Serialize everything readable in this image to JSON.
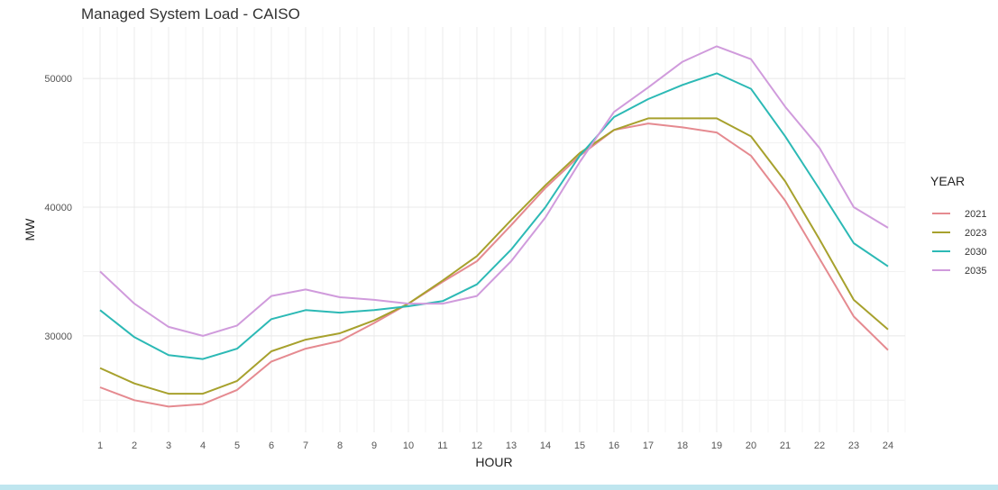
{
  "chart_data": {
    "type": "line",
    "title": "Managed System Load - CAISO",
    "xlabel": "HOUR",
    "ylabel": "MW",
    "x": [
      1,
      2,
      3,
      4,
      5,
      6,
      7,
      8,
      9,
      10,
      11,
      12,
      13,
      14,
      15,
      16,
      17,
      18,
      19,
      20,
      21,
      22,
      23,
      24
    ],
    "y_ticks": [
      30000,
      40000,
      50000
    ],
    "ylim": [
      22500,
      54000
    ],
    "grid": true,
    "legend": {
      "title": "YEAR",
      "placement": "right"
    },
    "series": [
      {
        "name": "2021",
        "color": "#e58a90",
        "values": [
          26000,
          25000,
          24500,
          24700,
          25800,
          28000,
          29000,
          29600,
          31000,
          32500,
          34200,
          35800,
          38600,
          41500,
          44000,
          46000,
          46500,
          46200,
          45800,
          44000,
          40500,
          36000,
          31500,
          28900
        ]
      },
      {
        "name": "2023",
        "color": "#a7a12d",
        "values": [
          27500,
          26300,
          25500,
          25500,
          26500,
          28800,
          29700,
          30200,
          31200,
          32500,
          34300,
          36200,
          39000,
          41700,
          44200,
          46000,
          46900,
          46900,
          46900,
          45500,
          42000,
          37500,
          32800,
          30500
        ]
      },
      {
        "name": "2030",
        "color": "#2cb9b5",
        "values": [
          32000,
          29900,
          28500,
          28200,
          29000,
          31300,
          32000,
          31800,
          32000,
          32300,
          32700,
          34000,
          36700,
          40000,
          44000,
          47000,
          48400,
          49500,
          50400,
          49200,
          45500,
          41400,
          37200,
          35400
        ]
      },
      {
        "name": "2035",
        "color": "#d09bdc",
        "values": [
          35000,
          32500,
          30700,
          30000,
          30800,
          33100,
          33600,
          33000,
          32800,
          32500,
          32500,
          33100,
          35800,
          39200,
          43500,
          47400,
          49300,
          51300,
          52500,
          51500,
          47800,
          44600,
          40000,
          38400
        ]
      }
    ]
  }
}
